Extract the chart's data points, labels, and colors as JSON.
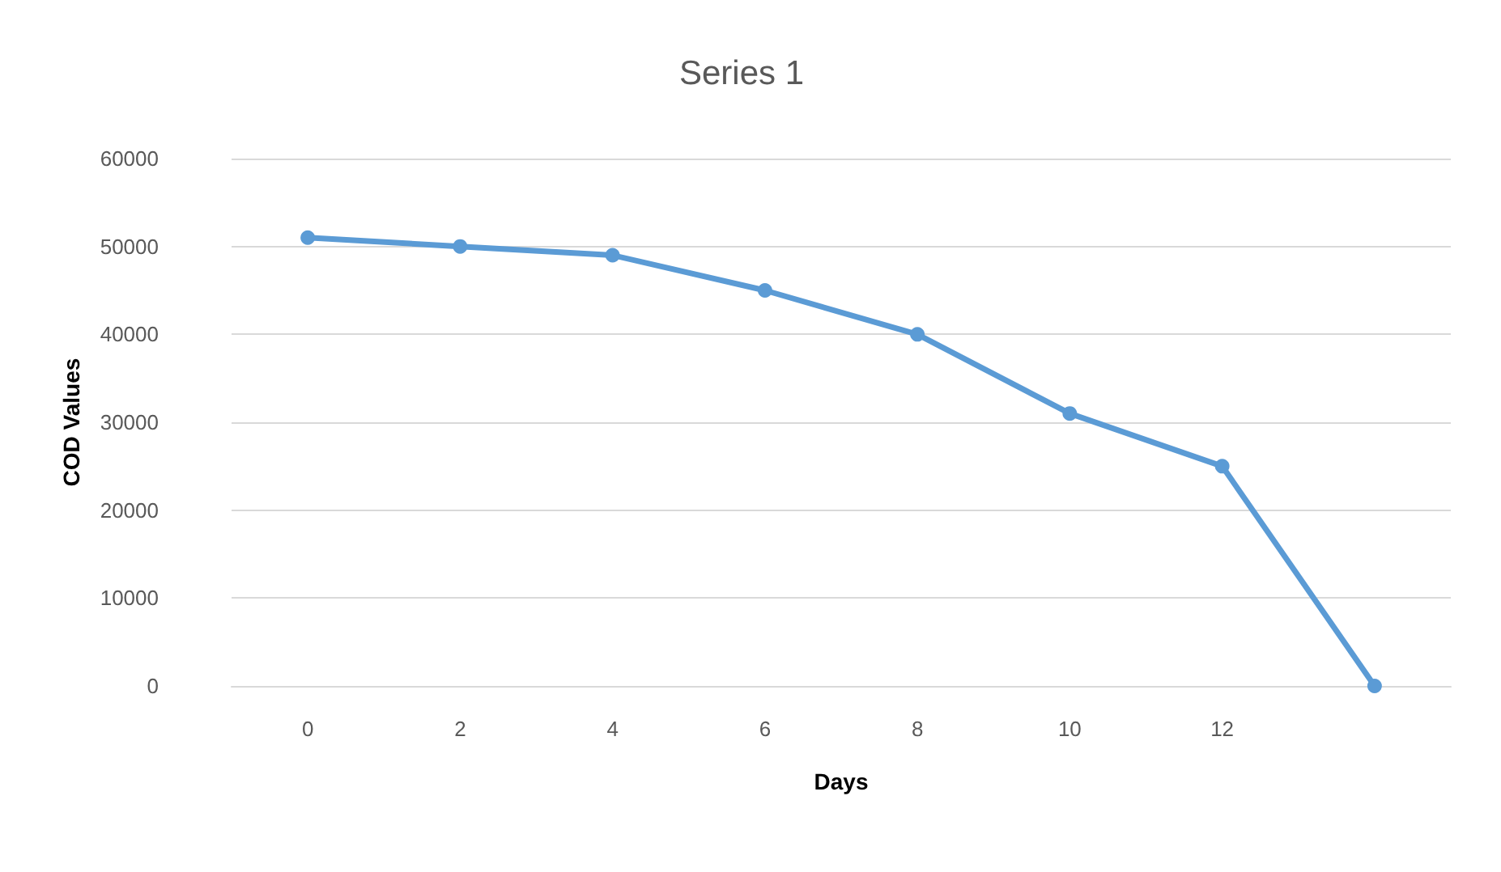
{
  "chart_data": {
    "type": "line",
    "title": "Series 1",
    "xlabel": "Days",
    "ylabel": "COD Values",
    "categories": [
      "0",
      "2",
      "4",
      "6",
      "8",
      "10",
      "12",
      null
    ],
    "series": [
      {
        "color": "#5b9bd5",
        "values": [
          51000,
          50000,
          49000,
          45000,
          40000,
          31000,
          25000,
          0
        ]
      }
    ],
    "ylim": [
      0,
      60000
    ],
    "yticks": [
      0,
      10000,
      20000,
      30000,
      40000,
      50000,
      60000
    ],
    "grid": "y",
    "marker": "circle",
    "line_style": "solid"
  }
}
